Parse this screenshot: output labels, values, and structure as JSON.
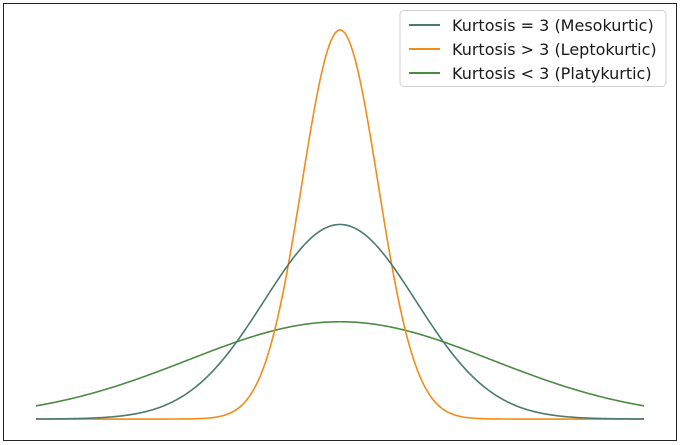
{
  "chart_data": {
    "type": "line",
    "title": "",
    "xlabel": "",
    "ylabel": "",
    "xlim": [
      -4,
      4
    ],
    "ylim": [
      -0.043,
      0.851
    ],
    "grid": false,
    "axis_ticks": false,
    "legend_placement": "top-right",
    "series": [
      {
        "name": "Kurtosis = 3 (Mesokurtic)",
        "color": "#4a7a70",
        "distribution": "normal",
        "mean": 0,
        "sd": 1,
        "peak": 0.399
      },
      {
        "name": "Kurtosis > 3 (Leptokurtic)",
        "color": "#f28b1a",
        "distribution": "normal",
        "mean": 0,
        "sd": 0.5,
        "peak": 0.798
      },
      {
        "name": "Kurtosis < 3 (Platykurtic)",
        "color": "#4c8a43",
        "distribution": "normal",
        "mean": 0,
        "sd": 2,
        "peak": 0.199
      }
    ]
  }
}
